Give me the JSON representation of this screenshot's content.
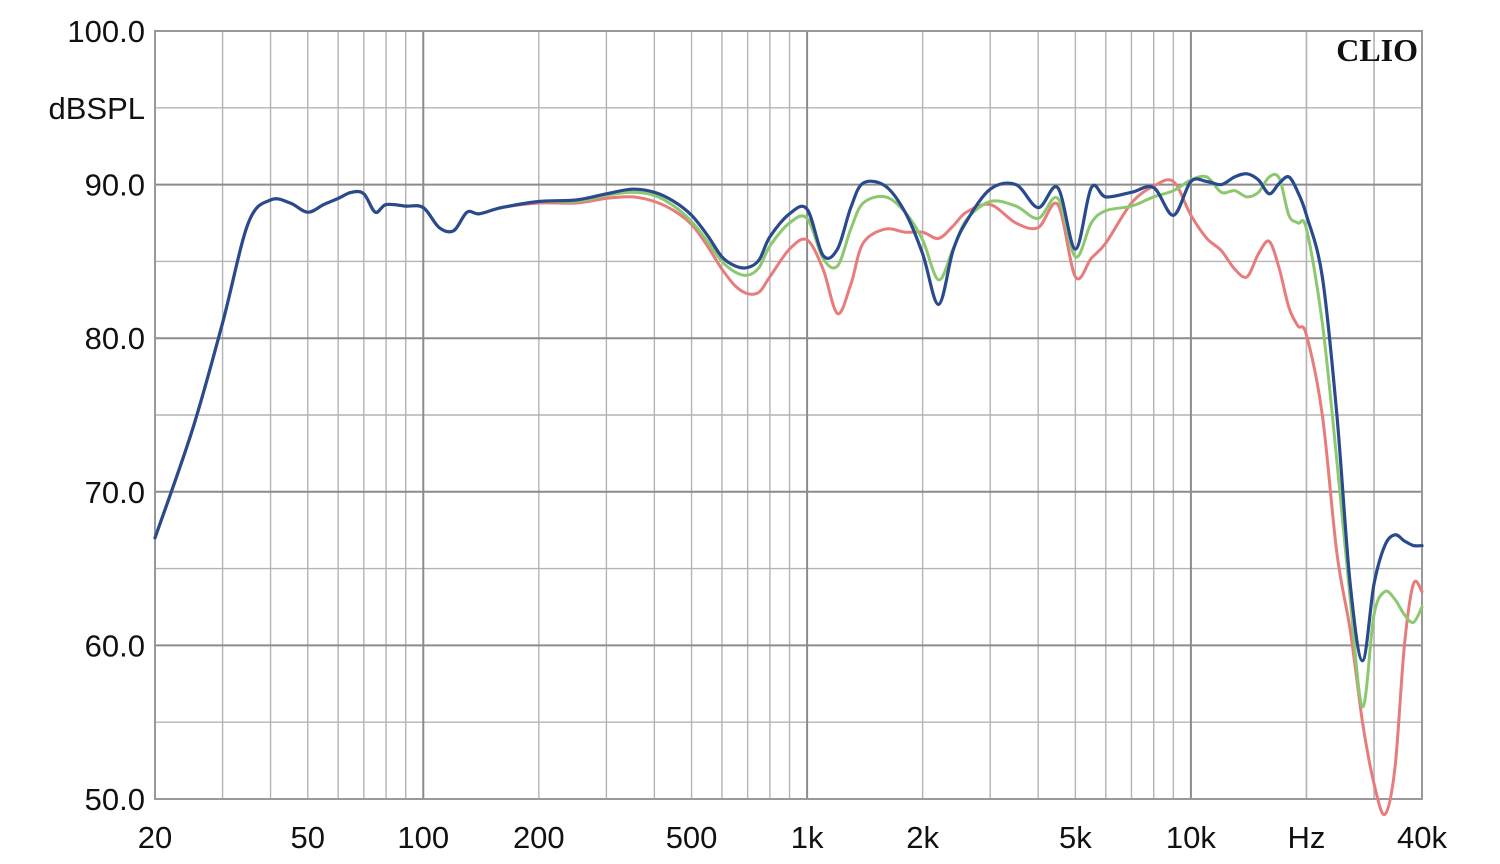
{
  "brand": "CLIO",
  "chart_data": {
    "type": "line",
    "xscale": "log",
    "xlim": [
      20,
      40000
    ],
    "ylim": [
      50,
      100
    ],
    "grid": true,
    "xlabel": "Hz",
    "ylabel": "dBSPL",
    "x_ticks": [
      {
        "value": 20,
        "label": "20"
      },
      {
        "value": 50,
        "label": "50"
      },
      {
        "value": 100,
        "label": "100"
      },
      {
        "value": 200,
        "label": "200"
      },
      {
        "value": 500,
        "label": "500"
      },
      {
        "value": 1000,
        "label": "1k"
      },
      {
        "value": 2000,
        "label": "2k"
      },
      {
        "value": 5000,
        "label": "5k"
      },
      {
        "value": 10000,
        "label": "10k"
      },
      {
        "value": 40000,
        "label": "40k"
      }
    ],
    "x_unit_position": 20000,
    "y_ticks": [
      {
        "value": 100,
        "label": "100.0"
      },
      {
        "value": 90,
        "label": "90.0"
      },
      {
        "value": 80,
        "label": "80.0"
      },
      {
        "value": 70,
        "label": "70.0"
      },
      {
        "value": 60,
        "label": "60.0"
      },
      {
        "value": 50,
        "label": "50.0"
      }
    ],
    "y_unit_position": 95,
    "x": [
      20,
      25,
      30,
      35,
      40,
      45,
      50,
      55,
      60,
      65,
      70,
      75,
      80,
      90,
      100,
      110,
      120,
      130,
      140,
      160,
      200,
      250,
      300,
      350,
      400,
      450,
      500,
      550,
      600,
      650,
      700,
      750,
      800,
      900,
      1000,
      1100,
      1200,
      1300,
      1400,
      1600,
      1800,
      2000,
      2200,
      2400,
      2600,
      3000,
      3500,
      4000,
      4500,
      5000,
      5500,
      6000,
      7000,
      8000,
      9000,
      10000,
      11000,
      12000,
      13000,
      14000,
      15000,
      16000,
      17000,
      18000,
      19000,
      20000,
      22000,
      24000,
      26000,
      28000,
      30000,
      32000,
      34000,
      36000,
      38000,
      40000
    ],
    "series": [
      {
        "color": "#e87c7c",
        "values": [
          67,
          74,
          81,
          87.5,
          89,
          88.8,
          88.2,
          88.7,
          89.1,
          89.5,
          89.4,
          88.2,
          88.7,
          88.6,
          88.5,
          87.2,
          87,
          88.2,
          88.1,
          88.5,
          88.8,
          88.8,
          89.1,
          89.2,
          88.9,
          88.3,
          87.4,
          86,
          84.5,
          83.4,
          82.9,
          83,
          84,
          85.8,
          86.4,
          84.5,
          81.6,
          83.5,
          86.2,
          87.1,
          86.9,
          86.9,
          86.5,
          87.3,
          88.2,
          88.7,
          87.5,
          87.2,
          88.7,
          84,
          85.2,
          86.2,
          88.8,
          89.9,
          90.2,
          88,
          86.5,
          85.7,
          84.5,
          84,
          85.5,
          86.3,
          84.5,
          82,
          80.8,
          80.2,
          75,
          66,
          61,
          55,
          51,
          49,
          52,
          60,
          64,
          63.5
        ]
      },
      {
        "color": "#8cc870",
        "values": [
          67,
          74,
          81,
          87.5,
          89,
          88.8,
          88.2,
          88.7,
          89.1,
          89.5,
          89.4,
          88.2,
          88.7,
          88.6,
          88.5,
          87.2,
          87,
          88.2,
          88.1,
          88.5,
          88.9,
          88.9,
          89.3,
          89.5,
          89.3,
          88.6,
          87.6,
          86.3,
          85,
          84.3,
          84.1,
          84.6,
          86,
          87.5,
          87.8,
          85.2,
          84.7,
          87.1,
          88.8,
          89.2,
          88.2,
          86.4,
          83.8,
          85.8,
          87.7,
          88.9,
          88.6,
          87.8,
          89.1,
          85.3,
          87.5,
          88.3,
          88.6,
          89.2,
          89.6,
          90.3,
          90.5,
          89.5,
          89.6,
          89.2,
          89.5,
          90.5,
          90.4,
          88,
          87.5,
          87.1,
          81,
          72,
          63,
          56,
          62,
          63.5,
          63,
          62,
          61.5,
          62.5
        ]
      },
      {
        "color": "#2a4a8e",
        "values": [
          67,
          74,
          81,
          87.5,
          89,
          88.8,
          88.2,
          88.7,
          89.1,
          89.5,
          89.4,
          88.2,
          88.7,
          88.6,
          88.5,
          87.2,
          87,
          88.2,
          88.1,
          88.5,
          88.9,
          89,
          89.4,
          89.7,
          89.5,
          88.9,
          88,
          86.7,
          85.3,
          84.7,
          84.6,
          85.1,
          86.6,
          88.1,
          88.4,
          85.4,
          85.8,
          88.5,
          90.1,
          89.9,
          88.2,
          85.5,
          82.2,
          85.7,
          87.6,
          89.7,
          90,
          88.5,
          89.8,
          85.8,
          89.8,
          89.2,
          89.5,
          89.8,
          88,
          90.2,
          90.2,
          90,
          90.5,
          90.7,
          90.3,
          89.4,
          90.1,
          90.5,
          89.5,
          88,
          84,
          75,
          64,
          59,
          64,
          66.5,
          67.2,
          66.8,
          66.5,
          66.5
        ]
      }
    ]
  }
}
